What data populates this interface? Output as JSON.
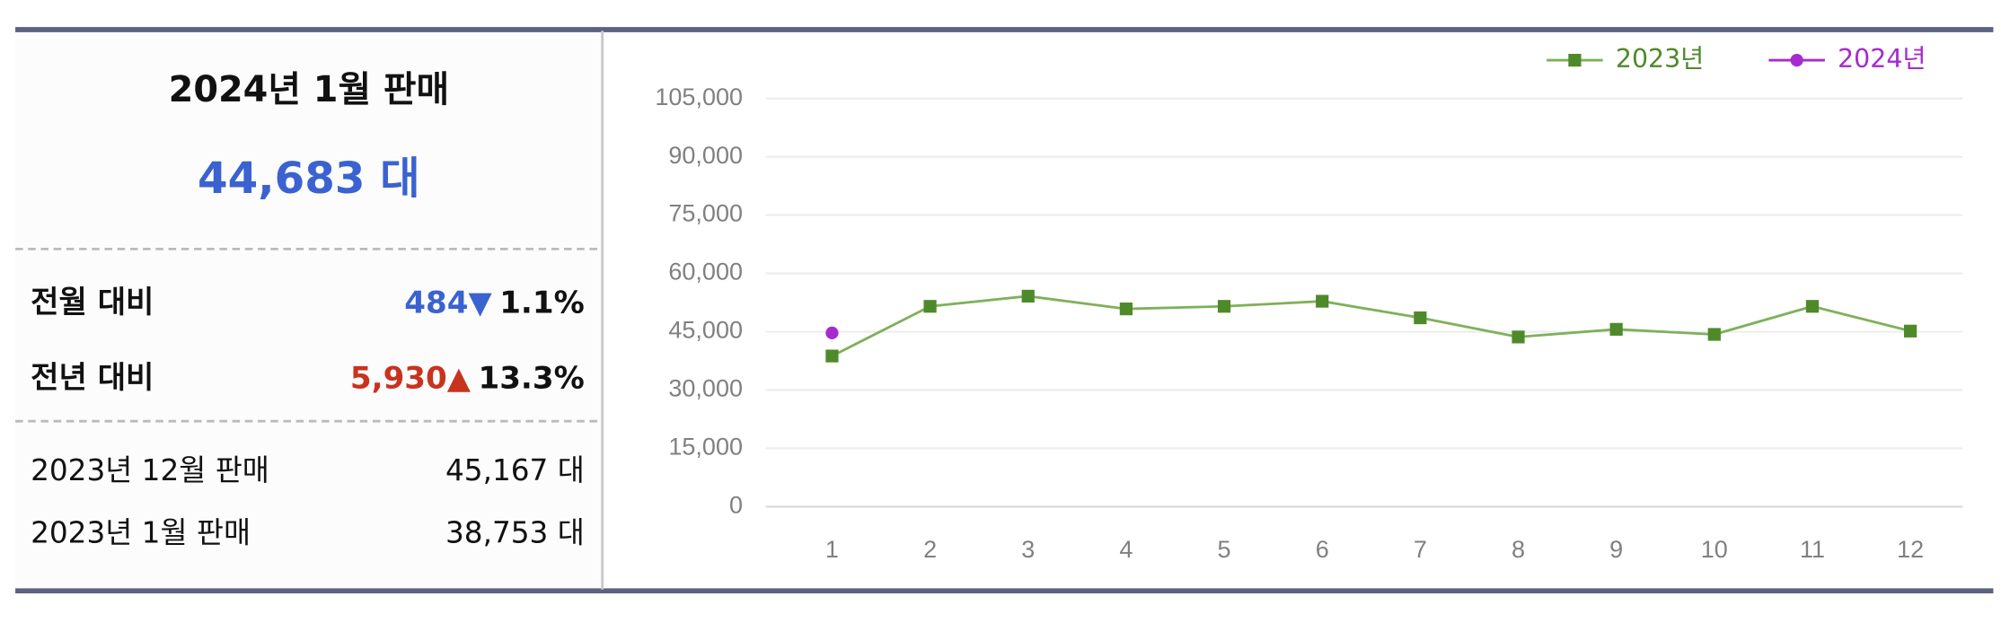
{
  "summary": {
    "title": "2024년 1월 판매",
    "total": "44,683 대",
    "comparisons": [
      {
        "label": "전월 대비",
        "change": "484▼",
        "rate": "1.1%"
      },
      {
        "label": "전년 대비",
        "change": "5,930▲",
        "rate": "13.3%"
      }
    ],
    "history": [
      {
        "label": "2023년 12월 판매",
        "value": "45,167 대"
      },
      {
        "label": "2023년 1월 판매",
        "value": "38,753 대"
      }
    ]
  },
  "chart_data": {
    "type": "line",
    "categories": [
      "1",
      "2",
      "3",
      "4",
      "5",
      "6",
      "7",
      "8",
      "9",
      "10",
      "11",
      "12"
    ],
    "series": [
      {
        "name": "2023년",
        "color": "#4f8a2a",
        "values": [
          38753,
          51530,
          54150,
          50870,
          51530,
          52840,
          48580,
          43650,
          45620,
          44310,
          51530,
          45167
        ]
      },
      {
        "name": "2024년",
        "color": "#a52bd0",
        "values": [
          44683,
          null,
          null,
          null,
          null,
          null,
          null,
          null,
          null,
          null,
          null,
          null
        ]
      }
    ],
    "ylim": [
      0,
      105000
    ],
    "yticks": [
      0,
      {
        "value": 15000,
        "label": "15,000"
      },
      {
        "value": 30000,
        "label": "30,000"
      },
      {
        "value": 45000,
        "label": "45,000"
      },
      {
        "value": 60000,
        "label": "60,000"
      },
      {
        "value": 75000,
        "label": "75,000"
      },
      {
        "value": 90000,
        "label": "90,000"
      },
      {
        "value": 105000,
        "label": "105,000"
      }
    ],
    "grid": true,
    "legend": "top-right"
  }
}
